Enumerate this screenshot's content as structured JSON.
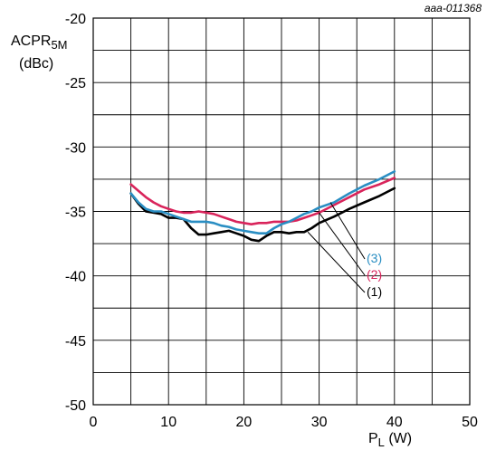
{
  "chart_data": {
    "type": "line",
    "reference_code": "aaa-011368",
    "ylabel_main": "ACPR",
    "ylabel_sub": "5M",
    "yunit": "(dBc)",
    "xlabel_main": "P",
    "xlabel_sub": "L",
    "xunit": " (W)",
    "xlim": [
      0,
      50
    ],
    "ylim": [
      -50,
      -20
    ],
    "xticks": [
      0,
      10,
      20,
      30,
      40,
      50
    ],
    "yticks": [
      -20,
      -25,
      -30,
      -35,
      -40,
      -45,
      -50
    ],
    "xtick_labels": [
      "0",
      "10",
      "20",
      "30",
      "40",
      "50"
    ],
    "ytick_labels": [
      "-20",
      "-25",
      "-30",
      "-35",
      "-40",
      "-45",
      "-50"
    ],
    "grid": true,
    "series": [
      {
        "name": "(3)",
        "color": "#2a8ec3",
        "x": [
          5,
          6,
          7,
          8,
          9,
          10,
          11,
          12,
          13,
          14,
          15,
          16,
          17,
          18,
          19,
          20,
          21,
          22,
          23,
          24,
          25,
          26,
          27,
          28,
          29,
          30,
          32,
          34,
          36,
          38,
          40
        ],
        "y": [
          -33.6,
          -34.3,
          -34.8,
          -35.0,
          -35.0,
          -35.2,
          -35.4,
          -35.6,
          -35.8,
          -35.8,
          -35.8,
          -35.9,
          -36.1,
          -36.2,
          -36.4,
          -36.5,
          -36.6,
          -36.7,
          -36.7,
          -36.3,
          -36.0,
          -35.8,
          -35.5,
          -35.2,
          -35.0,
          -34.7,
          -34.3,
          -33.6,
          -33.0,
          -32.5,
          -31.9
        ]
      },
      {
        "name": "(2)",
        "color": "#d9245b",
        "x": [
          5,
          6,
          7,
          8,
          9,
          10,
          11,
          12,
          13,
          14,
          15,
          16,
          17,
          18,
          19,
          20,
          21,
          22,
          23,
          24,
          25,
          26,
          27,
          28,
          29,
          30,
          32,
          34,
          36,
          38,
          40
        ],
        "y": [
          -32.9,
          -33.4,
          -33.9,
          -34.3,
          -34.6,
          -34.8,
          -35.0,
          -35.1,
          -35.1,
          -35.0,
          -35.1,
          -35.2,
          -35.4,
          -35.6,
          -35.8,
          -35.9,
          -36.0,
          -35.9,
          -35.9,
          -35.8,
          -35.8,
          -35.8,
          -35.7,
          -35.5,
          -35.3,
          -35.1,
          -34.5,
          -33.9,
          -33.3,
          -32.9,
          -32.4
        ]
      },
      {
        "name": "(1)",
        "color": "#000000",
        "x": [
          5,
          6,
          7,
          8,
          9,
          10,
          11,
          12,
          13,
          14,
          15,
          16,
          17,
          18,
          19,
          20,
          21,
          22,
          23,
          24,
          25,
          26,
          27,
          28,
          29,
          30,
          32,
          34,
          36,
          38,
          40
        ],
        "y": [
          -33.6,
          -34.4,
          -35.0,
          -35.1,
          -35.2,
          -35.5,
          -35.5,
          -35.6,
          -36.3,
          -36.8,
          -36.8,
          -36.7,
          -36.6,
          -36.5,
          -36.7,
          -36.9,
          -37.2,
          -37.3,
          -36.9,
          -36.6,
          -36.6,
          -36.7,
          -36.6,
          -36.6,
          -36.3,
          -35.9,
          -35.4,
          -34.8,
          -34.3,
          -33.8,
          -33.2
        ]
      }
    ],
    "leaders": [
      {
        "series": "(3)",
        "from": [
          31.5,
          -34.3
        ]
      },
      {
        "series": "(2)",
        "from": [
          30.0,
          -35.1
        ]
      },
      {
        "series": "(1)",
        "from": [
          28.5,
          -36.6
        ]
      }
    ]
  }
}
